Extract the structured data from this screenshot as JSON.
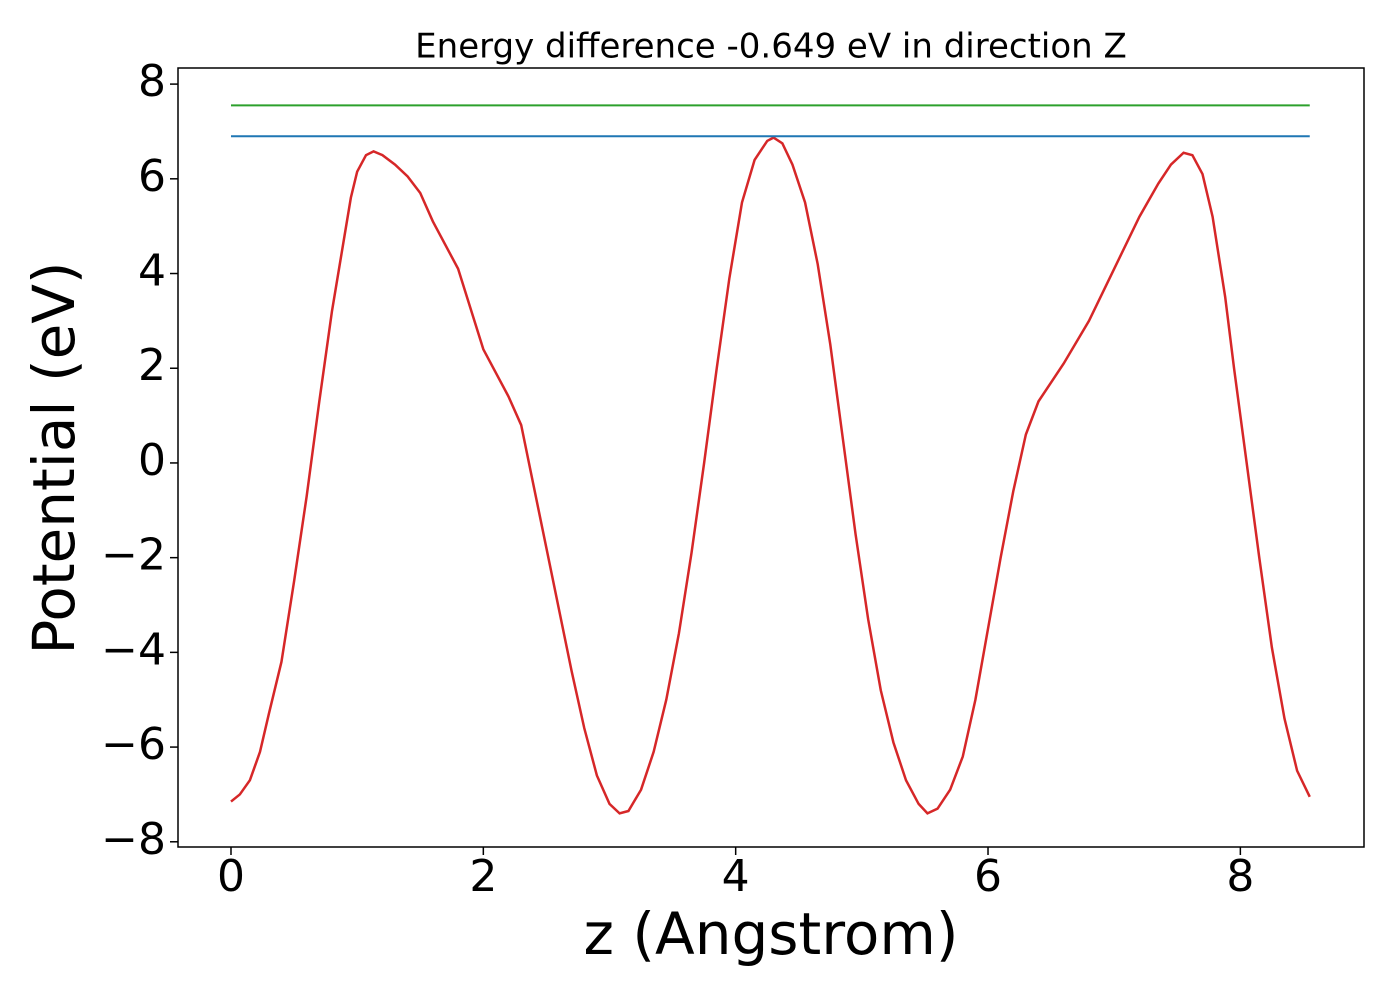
{
  "chart_data": {
    "type": "line",
    "title": "Energy difference -0.649 eV in direction Z",
    "xlabel": "z (Angstrom)",
    "ylabel": "Potential (eV)",
    "xlim": [
      -0.42,
      8.98
    ],
    "ylim": [
      -8.11,
      8.34
    ],
    "xticks": [
      0,
      2,
      4,
      6,
      8
    ],
    "yticks": [
      {
        "value": -8,
        "label": "−8"
      },
      {
        "value": -6,
        "label": "−6"
      },
      {
        "value": -4,
        "label": "−4"
      },
      {
        "value": -2,
        "label": "−2"
      },
      0,
      2,
      4,
      6,
      8
    ],
    "grid": false,
    "series": [
      {
        "color": "#d62728",
        "x": [
          0,
          0.07,
          0.15,
          0.23,
          0.3,
          0.4,
          0.5,
          0.6,
          0.7,
          0.8,
          0.9,
          0.95,
          1.0,
          1.07,
          1.13,
          1.2,
          1.3,
          1.4,
          1.5,
          1.6,
          1.8,
          2.0,
          2.2,
          2.3,
          2.4,
          2.5,
          2.6,
          2.7,
          2.8,
          2.9,
          3.0,
          3.08,
          3.15,
          3.25,
          3.35,
          3.45,
          3.55,
          3.65,
          3.75,
          3.85,
          3.95,
          4.05,
          4.15,
          4.25,
          4.3,
          4.37,
          4.45,
          4.55,
          4.65,
          4.75,
          4.85,
          4.95,
          5.05,
          5.15,
          5.25,
          5.35,
          5.45,
          5.52,
          5.6,
          5.7,
          5.8,
          5.9,
          6.0,
          6.1,
          6.2,
          6.3,
          6.4,
          6.5,
          6.6,
          6.8,
          7.0,
          7.2,
          7.35,
          7.45,
          7.55,
          7.62,
          7.7,
          7.78,
          7.88,
          7.95,
          8.05,
          8.15,
          8.25,
          8.35,
          8.45,
          8.55
        ],
        "values": [
          -7.15,
          -7.0,
          -6.7,
          -6.1,
          -5.3,
          -4.2,
          -2.5,
          -0.7,
          1.3,
          3.2,
          4.8,
          5.6,
          6.15,
          6.5,
          6.58,
          6.5,
          6.3,
          6.05,
          5.7,
          5.1,
          4.1,
          2.4,
          1.4,
          0.8,
          -0.5,
          -1.8,
          -3.1,
          -4.4,
          -5.6,
          -6.6,
          -7.2,
          -7.4,
          -7.35,
          -6.9,
          -6.1,
          -5.0,
          -3.6,
          -1.9,
          0,
          2.0,
          3.9,
          5.5,
          6.4,
          6.8,
          6.87,
          6.75,
          6.3,
          5.5,
          4.2,
          2.5,
          0.5,
          -1.5,
          -3.3,
          -4.8,
          -5.9,
          -6.7,
          -7.2,
          -7.4,
          -7.3,
          -6.9,
          -6.2,
          -5.0,
          -3.5,
          -2.0,
          -0.6,
          0.6,
          1.3,
          1.7,
          2.1,
          3.0,
          4.1,
          5.2,
          5.9,
          6.3,
          6.55,
          6.5,
          6.1,
          5.2,
          3.5,
          2.0,
          0,
          -2.0,
          -3.9,
          -5.4,
          -6.5,
          -7.05
        ]
      },
      {
        "color": "#1f77b4",
        "x": [
          0,
          8.55
        ],
        "values": [
          6.9,
          6.9
        ]
      },
      {
        "color": "#2ca02c",
        "x": [
          0,
          8.55
        ],
        "values": [
          7.55,
          7.55
        ]
      }
    ]
  }
}
